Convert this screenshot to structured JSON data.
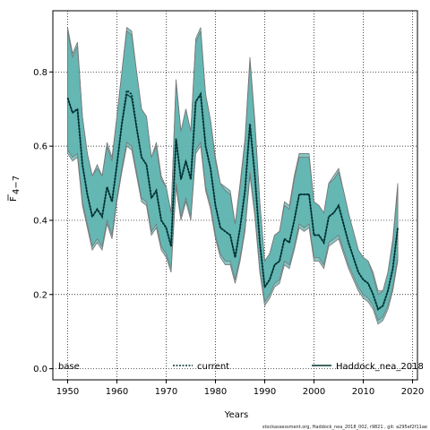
{
  "chart_data": {
    "type": "line",
    "xlabel": "Years",
    "ylabel_main": "F",
    "ylabel_sub": "4−7",
    "xlim": [
      1947,
      2021
    ],
    "ylim": [
      -0.03,
      0.965
    ],
    "xticks": [
      "1950",
      "1960",
      "1970",
      "1980",
      "1990",
      "2000",
      "2010",
      "2020"
    ],
    "yticks": [
      "0.0",
      "0.2",
      "0.4",
      "0.6",
      "0.8"
    ],
    "grid": true,
    "legend": [
      "base",
      "current",
      "Haddock_nea_2018"
    ],
    "legend_placement": "bottom",
    "footer": "stockassessment.org, Haddock_nea_2018_002, r9821 , git: a295ef2f11ae",
    "colors": {
      "band_fill": "#5cb3b0",
      "band_edge": "#777777",
      "line_dark": "#003333"
    },
    "x": [
      1950,
      1951,
      1952,
      1953,
      1954,
      1955,
      1956,
      1957,
      1958,
      1959,
      1960,
      1961,
      1962,
      1963,
      1964,
      1965,
      1966,
      1967,
      1968,
      1969,
      1970,
      1971,
      1972,
      1973,
      1974,
      1975,
      1976,
      1977,
      1978,
      1979,
      1980,
      1981,
      1982,
      1983,
      1984,
      1985,
      1986,
      1987,
      1988,
      1989,
      1990,
      1991,
      1992,
      1993,
      1994,
      1995,
      1996,
      1997,
      1998,
      1999,
      2000,
      2001,
      2002,
      2003,
      2004,
      2005,
      2006,
      2007,
      2008,
      2009,
      2010,
      2011,
      2012,
      2013,
      2014,
      2015,
      2016,
      2017
    ],
    "series": [
      {
        "name": "current",
        "values": [
          0.73,
          0.69,
          0.7,
          0.55,
          0.47,
          0.41,
          0.43,
          0.41,
          0.49,
          0.45,
          0.55,
          0.66,
          0.75,
          0.74,
          0.65,
          0.57,
          0.55,
          0.46,
          0.48,
          0.4,
          0.38,
          0.33,
          0.62,
          0.51,
          0.56,
          0.51,
          0.72,
          0.74,
          0.6,
          0.54,
          0.44,
          0.38,
          0.37,
          0.36,
          0.3,
          0.38,
          0.48,
          0.66,
          0.52,
          0.34,
          0.22,
          0.24,
          0.28,
          0.29,
          0.35,
          0.34,
          0.4,
          0.47,
          0.47,
          0.47,
          0.36,
          0.36,
          0.34,
          0.41,
          0.42,
          0.44,
          0.39,
          0.34,
          0.3,
          0.26,
          0.24,
          0.23,
          0.2,
          0.16,
          0.17,
          0.21,
          0.27,
          0.38
        ]
      },
      {
        "name": "Haddock_nea_2018",
        "values": [
          0.73,
          0.69,
          0.7,
          0.55,
          0.47,
          0.41,
          0.43,
          0.41,
          0.49,
          0.45,
          0.55,
          0.66,
          0.74,
          0.73,
          0.65,
          0.57,
          0.55,
          0.46,
          0.48,
          0.4,
          0.38,
          0.33,
          0.62,
          0.51,
          0.56,
          0.51,
          0.72,
          0.74,
          0.6,
          0.54,
          0.44,
          0.38,
          0.37,
          0.36,
          0.3,
          0.38,
          0.48,
          0.66,
          0.52,
          0.34,
          0.22,
          0.24,
          0.28,
          0.29,
          0.35,
          0.34,
          0.4,
          0.47,
          0.47,
          0.47,
          0.36,
          0.36,
          0.34,
          0.41,
          0.42,
          0.44,
          0.39,
          0.34,
          0.3,
          0.26,
          0.24,
          0.23,
          0.2,
          0.16,
          0.17,
          0.21,
          0.27,
          0.38
        ]
      }
    ],
    "bands": [
      {
        "name": "base",
        "upper": [
          0.92,
          0.85,
          0.88,
          0.68,
          0.58,
          0.52,
          0.55,
          0.52,
          0.61,
          0.57,
          0.68,
          0.8,
          0.92,
          0.91,
          0.8,
          0.7,
          0.68,
          0.57,
          0.61,
          0.52,
          0.49,
          0.42,
          0.78,
          0.64,
          0.7,
          0.64,
          0.89,
          0.92,
          0.74,
          0.67,
          0.57,
          0.5,
          0.49,
          0.48,
          0.39,
          0.5,
          0.62,
          0.84,
          0.67,
          0.45,
          0.29,
          0.31,
          0.36,
          0.37,
          0.45,
          0.44,
          0.52,
          0.58,
          0.58,
          0.58,
          0.45,
          0.44,
          0.42,
          0.5,
          0.52,
          0.54,
          0.48,
          0.42,
          0.37,
          0.32,
          0.3,
          0.29,
          0.26,
          0.21,
          0.21,
          0.26,
          0.35,
          0.5
        ],
        "lower": [
          0.58,
          0.56,
          0.57,
          0.44,
          0.38,
          0.32,
          0.34,
          0.32,
          0.39,
          0.35,
          0.45,
          0.53,
          0.6,
          0.59,
          0.52,
          0.45,
          0.44,
          0.36,
          0.38,
          0.32,
          0.3,
          0.26,
          0.49,
          0.4,
          0.45,
          0.4,
          0.58,
          0.6,
          0.48,
          0.43,
          0.35,
          0.3,
          0.28,
          0.28,
          0.23,
          0.29,
          0.37,
          0.52,
          0.41,
          0.26,
          0.17,
          0.19,
          0.22,
          0.23,
          0.28,
          0.27,
          0.32,
          0.38,
          0.37,
          0.38,
          0.29,
          0.29,
          0.27,
          0.33,
          0.34,
          0.35,
          0.31,
          0.27,
          0.24,
          0.21,
          0.19,
          0.18,
          0.16,
          0.12,
          0.13,
          0.16,
          0.21,
          0.29
        ]
      },
      {
        "name": "current",
        "upper": [
          0.91,
          0.84,
          0.87,
          0.68,
          0.58,
          0.52,
          0.54,
          0.52,
          0.6,
          0.56,
          0.68,
          0.8,
          0.91,
          0.9,
          0.8,
          0.7,
          0.68,
          0.57,
          0.6,
          0.51,
          0.49,
          0.42,
          0.77,
          0.64,
          0.7,
          0.64,
          0.88,
          0.91,
          0.74,
          0.67,
          0.56,
          0.5,
          0.48,
          0.47,
          0.39,
          0.49,
          0.61,
          0.83,
          0.66,
          0.45,
          0.29,
          0.31,
          0.36,
          0.37,
          0.44,
          0.43,
          0.51,
          0.57,
          0.57,
          0.57,
          0.45,
          0.44,
          0.42,
          0.5,
          0.51,
          0.53,
          0.48,
          0.42,
          0.37,
          0.32,
          0.3,
          0.29,
          0.25,
          0.2,
          0.21,
          0.26,
          0.34,
          0.49
        ],
        "lower": [
          0.59,
          0.57,
          0.58,
          0.45,
          0.39,
          0.33,
          0.35,
          0.33,
          0.4,
          0.36,
          0.46,
          0.54,
          0.61,
          0.6,
          0.53,
          0.46,
          0.45,
          0.37,
          0.39,
          0.33,
          0.31,
          0.27,
          0.5,
          0.41,
          0.46,
          0.41,
          0.59,
          0.61,
          0.49,
          0.44,
          0.36,
          0.31,
          0.29,
          0.29,
          0.24,
          0.3,
          0.38,
          0.53,
          0.42,
          0.27,
          0.18,
          0.2,
          0.23,
          0.24,
          0.29,
          0.28,
          0.33,
          0.39,
          0.38,
          0.39,
          0.3,
          0.3,
          0.28,
          0.34,
          0.35,
          0.36,
          0.32,
          0.28,
          0.25,
          0.22,
          0.2,
          0.19,
          0.17,
          0.13,
          0.14,
          0.17,
          0.22,
          0.3
        ]
      }
    ]
  }
}
